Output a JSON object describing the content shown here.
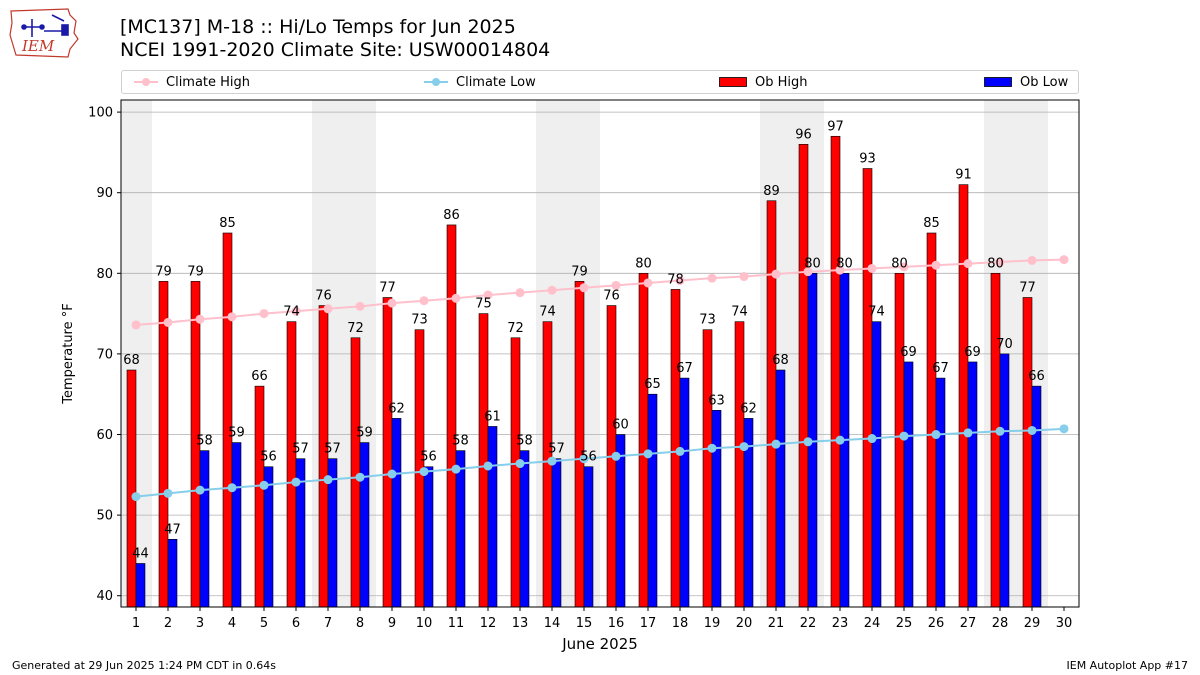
{
  "header": {
    "title_line1": "[MC137] M-18  :: Hi/Lo Temps for Jun 2025",
    "title_line2": "NCEI 1991-2020 Climate Site: USW00014804",
    "logo_text": "IEM"
  },
  "footer": {
    "left": "Generated at 29 Jun 2025 1:24 PM CDT in 0.64s",
    "right": "IEM Autoplot App #17"
  },
  "colors": {
    "climate_high": "#ffc0cb",
    "climate_low": "#87ceeb",
    "ob_high": "#ff0000",
    "ob_low": "#0000ff",
    "weekend_band": "#efefef",
    "grid": "#b0b0b0",
    "logo": "#c0392b"
  },
  "chart_data": {
    "type": "bar",
    "title": "[MC137] M-18  :: Hi/Lo Temps for Jun 2025",
    "subtitle": "NCEI 1991-2020 Climate Site: USW00014804",
    "xlabel": "June 2025",
    "ylabel": "Temperature °F",
    "x": [
      1,
      2,
      3,
      4,
      5,
      6,
      7,
      8,
      9,
      10,
      11,
      12,
      13,
      14,
      15,
      16,
      17,
      18,
      19,
      20,
      21,
      22,
      23,
      24,
      25,
      26,
      27,
      28,
      29,
      30
    ],
    "ylim": [
      38.6,
      101.5
    ],
    "yticks": [
      40,
      50,
      60,
      70,
      80,
      90,
      100
    ],
    "grid": "horizontal",
    "legend_placement": "top",
    "weekend_bands": [
      [
        1,
        1
      ],
      [
        7,
        8
      ],
      [
        14,
        15
      ],
      [
        21,
        22
      ],
      [
        28,
        29
      ]
    ],
    "series": [
      {
        "name": "Climate High",
        "type": "line",
        "values": [
          73.6,
          73.9,
          74.3,
          74.6,
          75.0,
          75.3,
          75.6,
          75.9,
          76.3,
          76.6,
          76.9,
          77.3,
          77.6,
          77.9,
          78.2,
          78.5,
          78.8,
          79.1,
          79.4,
          79.6,
          79.9,
          80.2,
          80.4,
          80.6,
          80.8,
          81.0,
          81.2,
          81.4,
          81.6,
          81.7
        ]
      },
      {
        "name": "Climate Low",
        "type": "line",
        "values": [
          52.3,
          52.7,
          53.1,
          53.4,
          53.7,
          54.1,
          54.4,
          54.7,
          55.1,
          55.4,
          55.7,
          56.1,
          56.4,
          56.7,
          57.0,
          57.3,
          57.6,
          57.9,
          58.3,
          58.5,
          58.8,
          59.1,
          59.3,
          59.5,
          59.8,
          60.0,
          60.2,
          60.4,
          60.5,
          60.7
        ]
      },
      {
        "name": "Ob High",
        "type": "bar",
        "values": [
          68,
          79,
          79,
          85,
          66,
          74,
          76,
          72,
          77,
          73,
          86,
          75,
          72,
          74,
          79,
          76,
          80,
          78,
          73,
          74,
          89,
          96,
          97,
          93,
          80,
          85,
          91,
          80,
          77,
          null
        ]
      },
      {
        "name": "Ob Low",
        "type": "bar",
        "values": [
          44,
          47,
          58,
          59,
          56,
          57,
          57,
          59,
          62,
          56,
          58,
          61,
          58,
          57,
          56,
          60,
          65,
          67,
          63,
          62,
          68,
          80,
          80,
          74,
          69,
          67,
          69,
          70,
          66,
          null
        ]
      }
    ]
  }
}
